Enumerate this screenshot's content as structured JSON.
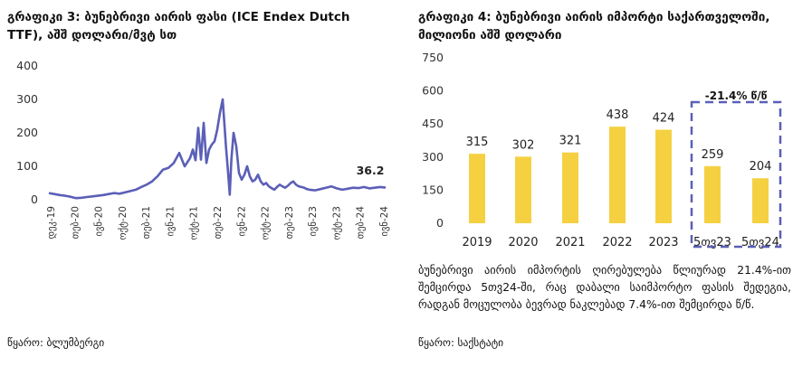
{
  "left_panel": {
    "title": "გრაფიკი 3: ბუნებრივი აირის ფასი (ICE Endex Dutch TTF), აშშ დოლარი/მვტ სთ",
    "source": "წყარო: ბლუმბერგი"
  },
  "right_panel": {
    "title": "გრაფიკი 4: ბუნებრივი აირის იმპორტი საქართველოში, მილიონი აშშ დოლარი",
    "note": "ბუნებრივი აირის იმპორტის ღირებულება წლიურად 21.4%-ით შემცირდა 5თვ24-ში, რაც დაბალი საიმპორტო ფასის შედეგია, რადგან მოცულობა ბევრად ნაკლებად 7.4%-ით შემცირდა წ/წ.",
    "source": "წყარო: საქსტატი"
  },
  "colors": {
    "line": "#5b5fb7",
    "bar": "#f5d142",
    "dash": "#5b5fb7"
  },
  "chart_data": [
    {
      "type": "line",
      "title": "გრაფიკი 3: ბუნებრივი აირის ფასი (ICE Endex Dutch TTF), აშშ დოლარი/მვტ სთ",
      "x_tick_labels": [
        "დეკ-19",
        "თებ-20",
        "ივნ-20",
        "ოქტ-20",
        "თებ-21",
        "ივნ-21",
        "ოქტ-21",
        "თებ-22",
        "ივნ-22",
        "ოქტ-22",
        "თებ-23",
        "ივნ-23",
        "ოქტ-23",
        "თებ-24",
        "ივნ-24"
      ],
      "y_ticks": [
        0,
        100,
        200,
        300,
        400
      ],
      "ylim": [
        0,
        400
      ],
      "end_label": "36.2",
      "series": [
        {
          "x": [
            0,
            1,
            2,
            3,
            4,
            5,
            6,
            7,
            8,
            9,
            10,
            11,
            12,
            13,
            14,
            15,
            16,
            17,
            18,
            19,
            20,
            21,
            22,
            23,
            24,
            25,
            26,
            26.5,
            27,
            27.5,
            28,
            28.5,
            29,
            29.5,
            30,
            30.5,
            31,
            31.5,
            32,
            32.3,
            32.6,
            33,
            33.3,
            33.6,
            34,
            34.5,
            35,
            35.5,
            36,
            36.5,
            37,
            37.5,
            38,
            38.5,
            39,
            39.5,
            40,
            40.5,
            41,
            41.5,
            42,
            42.5,
            43,
            43.5,
            44,
            44.5,
            45,
            45.5,
            46,
            46.5,
            47,
            47.5,
            48,
            49,
            50,
            51,
            52,
            53,
            54,
            55,
            56,
            57,
            58,
            59,
            60,
            61,
            62
          ],
          "y": [
            20,
            17,
            14,
            12,
            9,
            5,
            6,
            8,
            10,
            12,
            14,
            17,
            20,
            18,
            22,
            26,
            30,
            38,
            45,
            55,
            70,
            90,
            95,
            110,
            140,
            100,
            125,
            150,
            118,
            215,
            120,
            230,
            110,
            150,
            165,
            175,
            210,
            260,
            300,
            230,
            160,
            80,
            15,
            120,
            200,
            160,
            80,
            60,
            75,
            100,
            70,
            55,
            60,
            75,
            55,
            45,
            50,
            40,
            35,
            30,
            38,
            45,
            40,
            36,
            42,
            50,
            55,
            45,
            40,
            38,
            36,
            32,
            30,
            28,
            32,
            36,
            40,
            34,
            30,
            33,
            36,
            35,
            38,
            34,
            36,
            38,
            36.2
          ]
        }
      ]
    },
    {
      "type": "bar",
      "title": "გრაფიკი 4: ბუნებრივი აირის იმპორტი საქართველოში, მილიონი აშშ დოლარი",
      "categories": [
        "2019",
        "2020",
        "2021",
        "2022",
        "2023",
        "5თვ23",
        "5თვ24"
      ],
      "values": [
        315,
        302,
        321,
        438,
        424,
        259,
        204
      ],
      "y_ticks": [
        0,
        150,
        300,
        450,
        600,
        750
      ],
      "ylim": [
        0,
        750
      ],
      "annotation": "-21.4% წ/წ"
    }
  ]
}
